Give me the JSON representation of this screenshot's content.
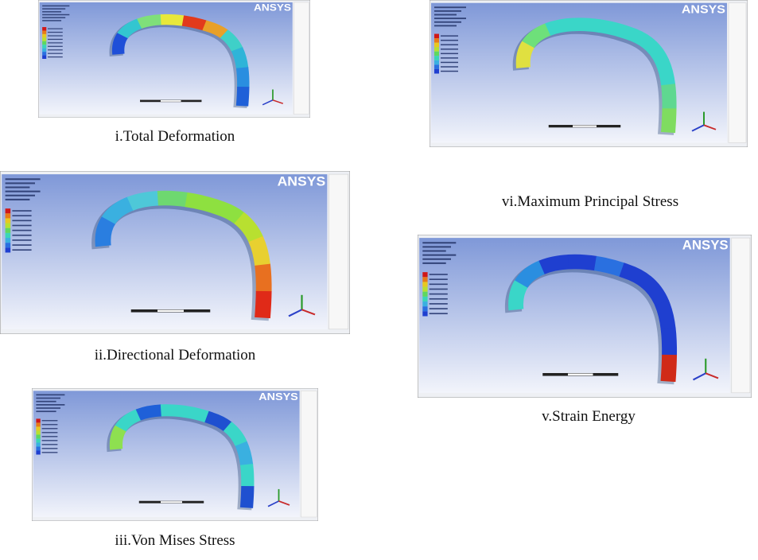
{
  "panels": [
    {
      "caption": "i.Total Deformation",
      "logo": "ANSYS",
      "arch_colors": [
        "#1f4fd8",
        "#33c6d0",
        "#7fe07a",
        "#e8e83a",
        "#e23a1c",
        "#e8a028",
        "#3fd0c8",
        "#2fb4d8",
        "#2a8ee0",
        "#1f60d8"
      ]
    },
    {
      "caption": "vi.Maximum Principal Stress",
      "logo": "ANSYS",
      "arch_colors": [
        "#e0e040",
        "#6ee07a",
        "#3ad6c8",
        "#3ad6c8",
        "#3ad6c8",
        "#3ad6c8",
        "#3ad6c8",
        "#3ad6c8",
        "#5fd890",
        "#7fdc60"
      ]
    },
    {
      "caption": "ii.Directional Deformation",
      "logo": "ANSYS",
      "arch_colors": [
        "#2a7ee0",
        "#3ab0e0",
        "#4ec8d8",
        "#6ed870",
        "#8ee040",
        "#8ee040",
        "#b8e030",
        "#e8d030",
        "#e87020",
        "#e02a18"
      ]
    },
    {
      "caption": "v.Strain Energy",
      "logo": "ANSYS",
      "arch_colors": [
        "#3ad6c8",
        "#2a8ee0",
        "#1f3fd0",
        "#1f3fd0",
        "#2a70e0",
        "#1f3fd0",
        "#1f3fd0",
        "#1f3fd0",
        "#1f3fd0",
        "#d02a18"
      ]
    },
    {
      "caption": "iii.Von Mises Stress",
      "logo": "ANSYS",
      "arch_colors": [
        "#8ee050",
        "#3ad6c8",
        "#1f60d8",
        "#3ad6c8",
        "#3ad6c8",
        "#1f50d0",
        "#3ad6c8",
        "#3ab0e0",
        "#3ad6c8",
        "#1f50d0"
      ]
    }
  ]
}
